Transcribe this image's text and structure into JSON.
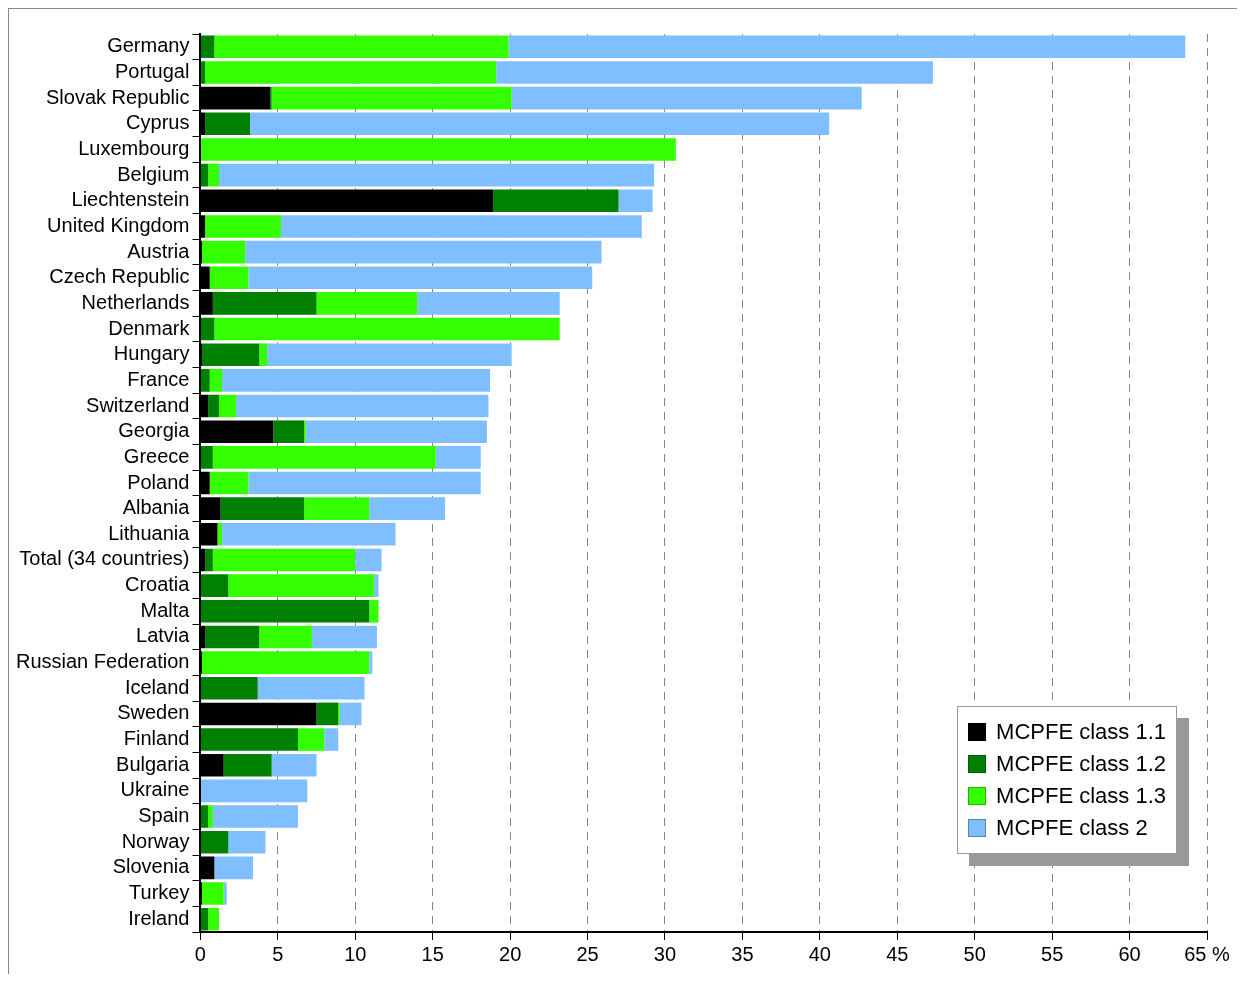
{
  "chart_data": {
    "type": "bar",
    "orientation": "horizontal",
    "stacked": true,
    "categories": [
      "Germany",
      "Portugal",
      "Slovak Republic",
      "Cyprus",
      "Luxembourg",
      "Belgium",
      "Liechtenstein",
      "United Kingdom",
      "Austria",
      "Czech Republic",
      "Netherlands",
      "Denmark",
      "Hungary",
      "France",
      "Switzerland",
      "Georgia",
      "Greece",
      "Poland",
      "Albania",
      "Lithuania",
      "Total (34 countries)",
      "Croatia",
      "Malta",
      "Latvia",
      "Russian Federation",
      "Iceland",
      "Sweden",
      "Finland",
      "Bulgaria",
      "Ukraine",
      "Spain",
      "Norway",
      "Slovenia",
      "Turkey",
      "Ireland"
    ],
    "series": [
      {
        "name": "MCPFE class 1.1",
        "color": "#000000",
        "values": [
          0,
          0,
          4.5,
          0.3,
          0,
          0,
          18.9,
          0.3,
          0.1,
          0.6,
          0.8,
          0,
          0.1,
          0,
          0.5,
          4.7,
          0,
          0.6,
          1.3,
          1.1,
          0.3,
          0,
          0,
          0.3,
          0.1,
          0,
          7.5,
          0,
          1.5,
          0,
          0,
          0,
          0.9,
          0.1,
          0
        ]
      },
      {
        "name": "MCPFE class 1.2",
        "color": "#008000",
        "values": [
          0.9,
          0.3,
          0.1,
          2.9,
          0,
          0.5,
          8.1,
          0,
          0,
          0,
          6.7,
          0.9,
          3.7,
          0.6,
          0.7,
          2.0,
          0.8,
          0,
          5.4,
          0,
          0.5,
          1.8,
          10.9,
          3.5,
          0,
          3.7,
          1.4,
          6.3,
          3.1,
          0,
          0.5,
          1.8,
          0,
          0,
          0.5
        ]
      },
      {
        "name": "MCPFE class 1.3",
        "color": "#33ff00",
        "values": [
          19.0,
          18.8,
          15.5,
          0,
          30.7,
          0.7,
          0,
          4.9,
          2.8,
          2.5,
          6.5,
          22.3,
          0.5,
          0.8,
          1.1,
          0.1,
          14.4,
          2.5,
          4.2,
          0.3,
          9.2,
          9.4,
          0.6,
          3.4,
          10.8,
          0,
          0.1,
          1.7,
          0,
          0,
          0.3,
          0,
          0,
          1.4,
          0.7
        ]
      },
      {
        "name": "MCPFE class 2",
        "color": "#80bfff",
        "values": [
          43.7,
          28.2,
          22.6,
          37.4,
          0,
          28.1,
          2.2,
          23.3,
          23.0,
          22.2,
          9.2,
          0,
          15.8,
          17.3,
          16.3,
          11.7,
          2.9,
          15.0,
          4.9,
          11.2,
          1.7,
          0.3,
          0,
          4.2,
          0.2,
          6.9,
          1.4,
          0.9,
          2.9,
          6.9,
          5.5,
          2.4,
          2.5,
          0.2,
          0
        ]
      }
    ],
    "xlim": [
      0,
      65
    ],
    "xticks": [
      0,
      5,
      10,
      15,
      20,
      25,
      30,
      35,
      40,
      45,
      50,
      55,
      60,
      {
        "value": 65,
        "label": "65 %"
      }
    ],
    "grid": "x",
    "line_style": "dashed",
    "legend": "bottom right"
  }
}
